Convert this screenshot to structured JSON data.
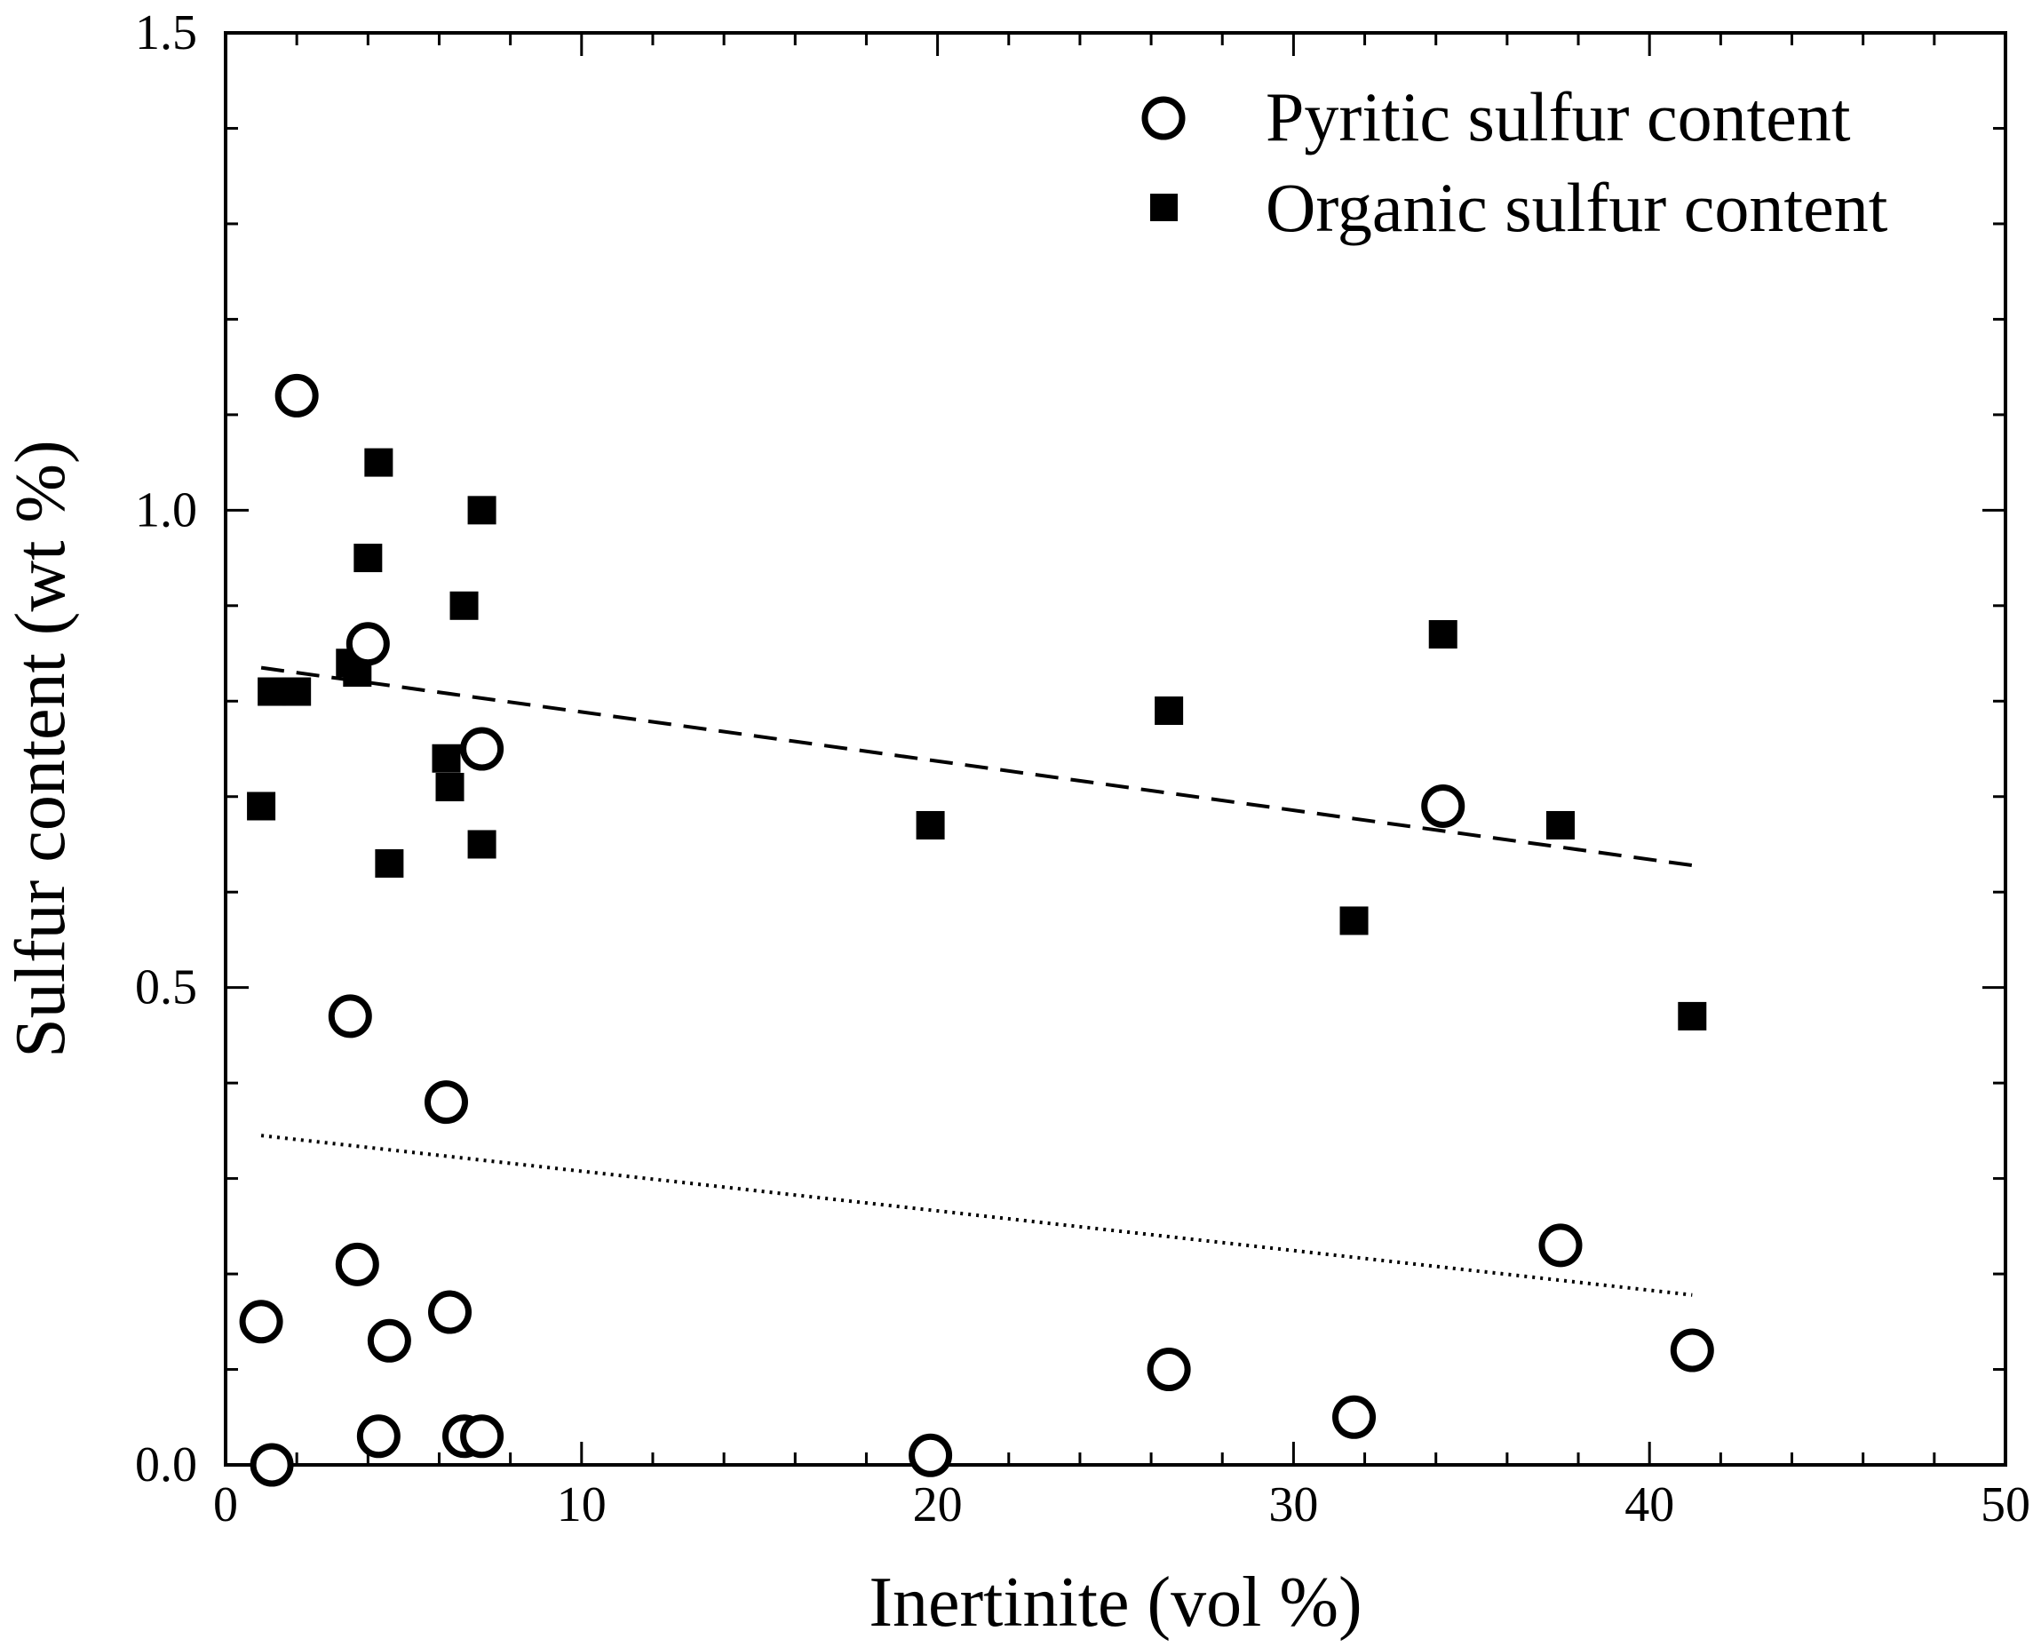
{
  "chart_data": {
    "type": "scatter",
    "xlabel": "Inertinite (vol %)",
    "ylabel": "Sulfur content (wt %)",
    "xlim": [
      0,
      50
    ],
    "ylim": [
      0,
      1.5
    ],
    "x_ticks": [
      "0",
      "10",
      "20",
      "30",
      "40",
      "50"
    ],
    "y_ticks": [
      "0.0",
      "0.5",
      "1.0",
      "1.5"
    ],
    "grid": false,
    "legend_position": "top-right",
    "series": [
      {
        "name": "Pyritic sulfur content",
        "marker": "open-circle",
        "points": [
          {
            "x": 1.0,
            "y": 0.15
          },
          {
            "x": 1.3,
            "y": 0.0
          },
          {
            "x": 2.0,
            "y": 1.12
          },
          {
            "x": 3.5,
            "y": 0.47
          },
          {
            "x": 3.7,
            "y": 0.21
          },
          {
            "x": 4.0,
            "y": 0.86
          },
          {
            "x": 4.3,
            "y": 0.03
          },
          {
            "x": 4.6,
            "y": 0.13
          },
          {
            "x": 6.2,
            "y": 0.38
          },
          {
            "x": 6.3,
            "y": 0.16
          },
          {
            "x": 6.7,
            "y": 0.03
          },
          {
            "x": 7.2,
            "y": 0.03
          },
          {
            "x": 7.2,
            "y": 0.75
          },
          {
            "x": 19.8,
            "y": 0.01
          },
          {
            "x": 26.5,
            "y": 0.1
          },
          {
            "x": 31.7,
            "y": 0.05
          },
          {
            "x": 34.2,
            "y": 0.69
          },
          {
            "x": 37.5,
            "y": 0.23
          },
          {
            "x": 41.2,
            "y": 0.12
          }
        ],
        "trendline": {
          "style": "dotted",
          "x": [
            1.0,
            41.2
          ],
          "y": [
            0.345,
            0.178
          ]
        }
      },
      {
        "name": "Organic sulfur content",
        "marker": "filled-square",
        "points": [
          {
            "x": 1.0,
            "y": 0.69
          },
          {
            "x": 1.3,
            "y": 0.81
          },
          {
            "x": 2.0,
            "y": 0.81
          },
          {
            "x": 3.5,
            "y": 0.84
          },
          {
            "x": 3.7,
            "y": 0.83
          },
          {
            "x": 4.0,
            "y": 0.95
          },
          {
            "x": 4.3,
            "y": 1.05
          },
          {
            "x": 4.6,
            "y": 0.63
          },
          {
            "x": 6.2,
            "y": 0.74
          },
          {
            "x": 6.3,
            "y": 0.71
          },
          {
            "x": 6.7,
            "y": 0.9
          },
          {
            "x": 7.2,
            "y": 0.65
          },
          {
            "x": 7.2,
            "y": 1.0
          },
          {
            "x": 19.8,
            "y": 0.67
          },
          {
            "x": 26.5,
            "y": 0.79
          },
          {
            "x": 31.7,
            "y": 0.57
          },
          {
            "x": 34.2,
            "y": 0.87
          },
          {
            "x": 37.5,
            "y": 0.67
          },
          {
            "x": 41.2,
            "y": 0.47
          }
        ],
        "trendline": {
          "style": "dashed",
          "x": [
            1.0,
            41.2
          ],
          "y": [
            0.835,
            0.628
          ]
        }
      }
    ]
  }
}
